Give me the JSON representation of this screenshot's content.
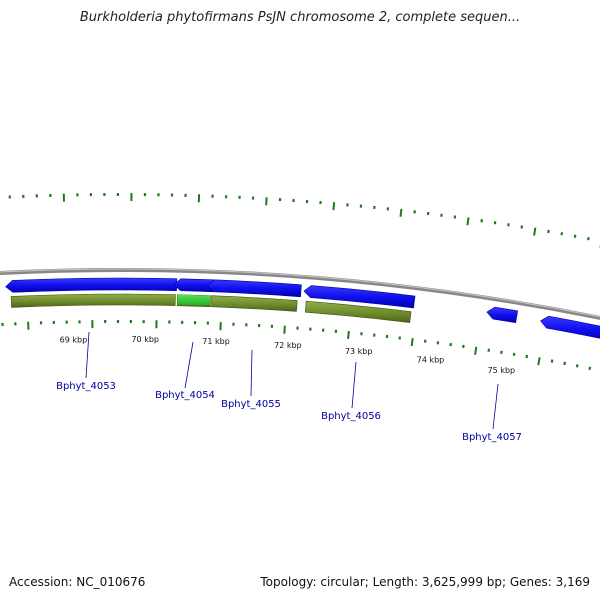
{
  "header": {
    "title": "Burkholderia phytofirmans PsJN chromosome 2, complete sequen..."
  },
  "footer": {
    "accession": "Accession: NC_010676",
    "summary": "Topology: circular; Length: 3,625,999 bp; Genes: 3,169"
  },
  "colors": {
    "gene": "#1010ee",
    "cds_light": "#7a9a38",
    "cds_dark": "#556b1f",
    "highlight": "#33cc33",
    "tick": "#1f7a1f",
    "backbone": "#888888",
    "gene_label": "#000099"
  },
  "scale_labels": [
    "69 kbp",
    "70 kbp",
    "71 kbp",
    "72 kbp",
    "73 kbp",
    "74 kbp",
    "75 kbp"
  ],
  "genes": [
    {
      "id": "Bphyt_4053",
      "label": "Bphyt_4053",
      "strand": "-",
      "has_cds": true,
      "highlight": false
    },
    {
      "id": "Bphyt_4054",
      "label": "Bphyt_4054",
      "strand": "-",
      "has_cds": true,
      "highlight": true
    },
    {
      "id": "Bphyt_4055",
      "label": "Bphyt_4055",
      "strand": "-",
      "has_cds": true,
      "highlight": false
    },
    {
      "id": "Bphyt_4056",
      "label": "Bphyt_4056",
      "strand": "-",
      "has_cds": true,
      "highlight": false
    },
    {
      "id": "Bphyt_4057",
      "label": "Bphyt_4057",
      "strand": "-",
      "has_cds": false,
      "highlight": false
    },
    {
      "id": "unlabeled_gene",
      "label": "",
      "strand": "-",
      "has_cds": false,
      "highlight": false
    }
  ]
}
